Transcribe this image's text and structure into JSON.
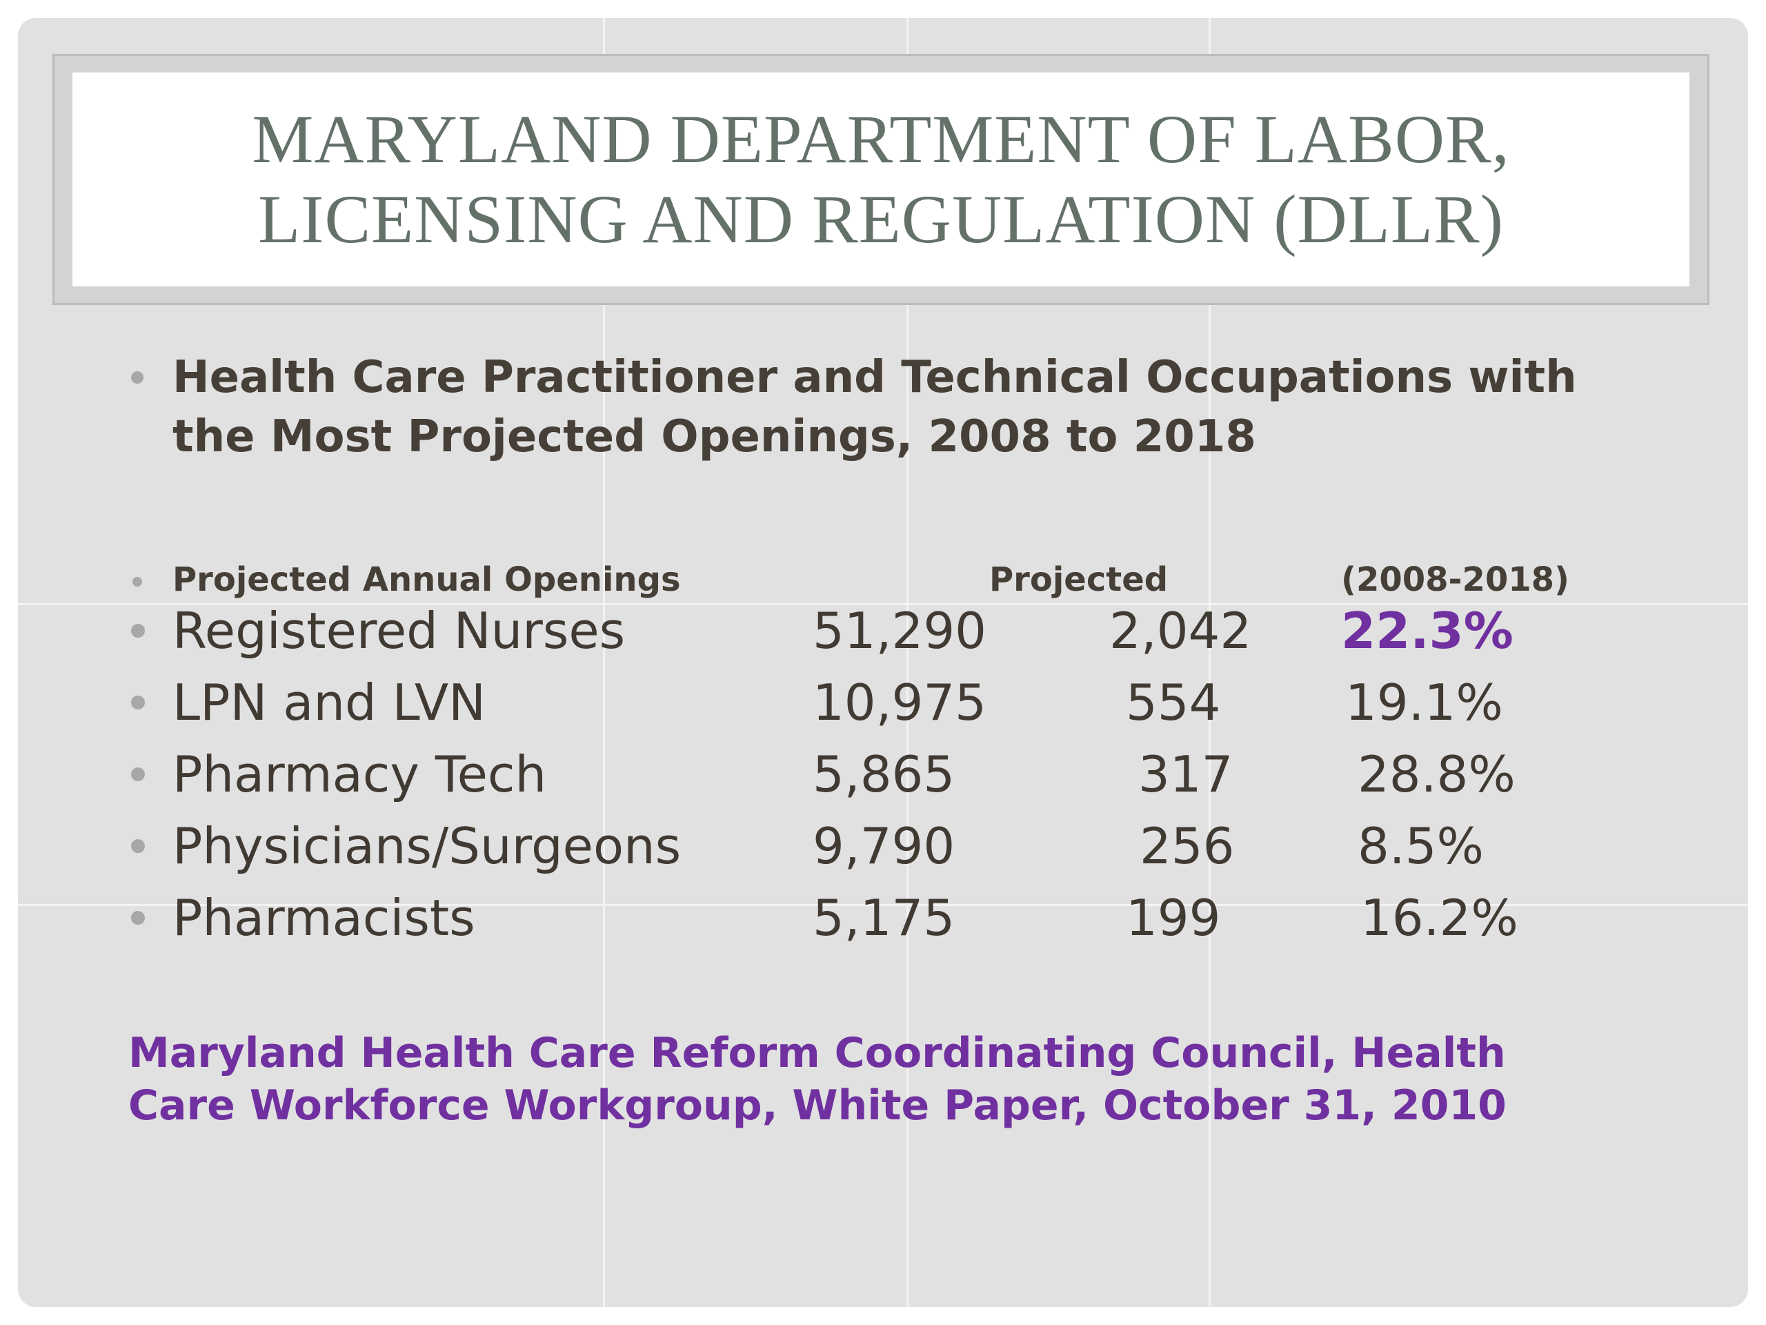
{
  "title": {
    "line1": "MARYLAND DEPARTMENT OF LABOR,",
    "line2": "LICENSING AND REGULATION (DLLR)"
  },
  "heading": {
    "line1": "Health Care Practitioner and Technical Occupations with",
    "line2": "the Most Projected Openings, 2008 to 2018"
  },
  "table": {
    "headers": {
      "openings": "Projected Annual Openings",
      "projected": "Projected",
      "period": "(2008-2018)"
    },
    "rows": [
      {
        "occupation": "Registered Nurses",
        "openings": "51,290",
        "projected": "2,042",
        "growth": "22.3%"
      },
      {
        "occupation": "LPN and LVN",
        "openings": "10,975",
        "projected": "554",
        "growth": "19.1%"
      },
      {
        "occupation": "Pharmacy Tech",
        "openings": "5,865",
        "projected": "317",
        "growth": "28.8%"
      },
      {
        "occupation": "Physicians/Surgeons",
        "openings": "9,790",
        "projected": "256",
        "growth": "8.5%"
      },
      {
        "occupation": "Pharmacists",
        "openings": "5,175",
        "projected": "199",
        "growth": "16.2%"
      }
    ]
  },
  "source": {
    "line1": "Maryland Health Care Reform Coordinating Council, Health",
    "line2": "Care Workforce Workgroup, White Paper, October 31, 2010"
  },
  "colors": {
    "slide_background": "#e1e1e1",
    "title_text": "#637168",
    "body_text": "#403a33",
    "accent_purple": "#7030a0"
  }
}
